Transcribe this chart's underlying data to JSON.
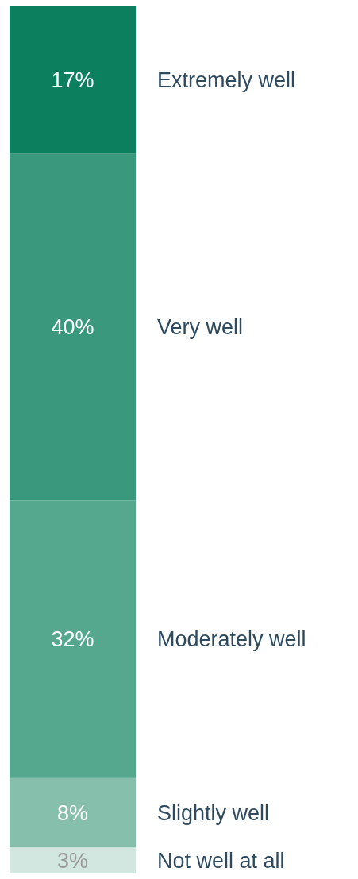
{
  "chart_data": {
    "type": "bar",
    "stacked": true,
    "categories": [
      null
    ],
    "legend": false,
    "series": [
      {
        "name": "Not well at all",
        "color": "#d1e7df",
        "values": [
          3
        ],
        "value_labels": [
          "3%"
        ]
      },
      {
        "name": "Slightly well",
        "color": "#86bfac",
        "values": [
          8
        ],
        "value_labels": [
          "8%"
        ]
      },
      {
        "name": "Moderately well",
        "color": "#55a88e",
        "values": [
          32
        ],
        "value_labels": [
          "32%"
        ]
      },
      {
        "name": "Very well",
        "color": "#3a987d",
        "values": [
          40
        ],
        "value_labels": [
          "40%"
        ]
      },
      {
        "name": "Extremely well",
        "color": "#0b7f5e",
        "values": [
          17
        ],
        "value_labels": [
          "17%"
        ]
      }
    ]
  }
}
